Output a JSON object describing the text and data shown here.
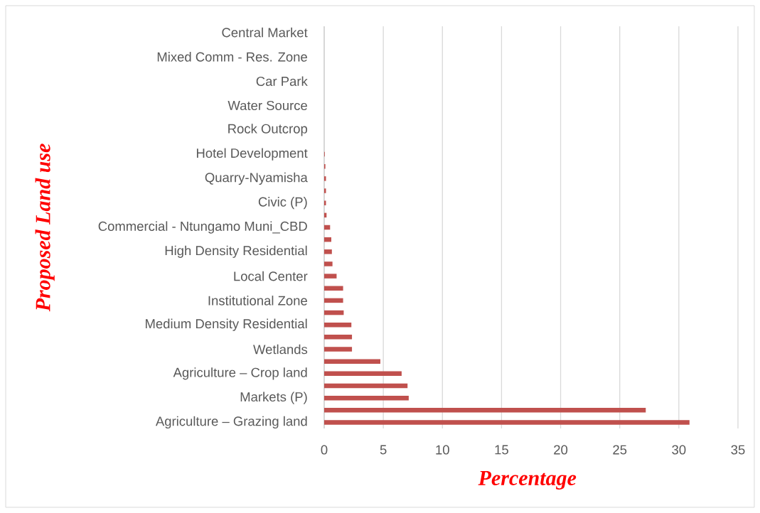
{
  "chart_data": {
    "type": "bar",
    "orientation": "horizontal",
    "xlabel": "Percentage",
    "ylabel": "Proposed Land use",
    "categories": [
      "Central Market",
      null,
      "Mixed Comm - Res. Zone",
      null,
      "Car Park",
      null,
      "Water Source",
      null,
      "Rock Outcrop",
      null,
      "Hotel Development",
      null,
      "Quarry-Nyamisha",
      null,
      "Civic (P)",
      null,
      "Commercial - Ntungamo Muni_CBD",
      null,
      "High Density Residential",
      null,
      "Local Center",
      null,
      "Institutional Zone",
      null,
      "Medium Density Residential",
      null,
      "Wetlands",
      null,
      "Agriculture – Crop land",
      null,
      "Markets (P)",
      null,
      "Agriculture – Grazing land"
    ],
    "values": [
      0,
      0,
      0,
      0,
      0,
      0,
      0,
      0,
      0,
      0,
      0.05,
      0.1,
      0.15,
      0.15,
      0.15,
      0.2,
      0.5,
      0.6,
      0.65,
      0.7,
      1.05,
      1.6,
      1.6,
      1.65,
      2.3,
      2.35,
      2.35,
      4.75,
      6.55,
      7.05,
      7.15,
      27.2,
      30.9
    ],
    "color": "#c0504d",
    "xlim": [
      0,
      35
    ],
    "xticks": [
      0,
      5,
      10,
      15,
      20,
      25,
      30,
      35
    ],
    "grid": "x"
  }
}
